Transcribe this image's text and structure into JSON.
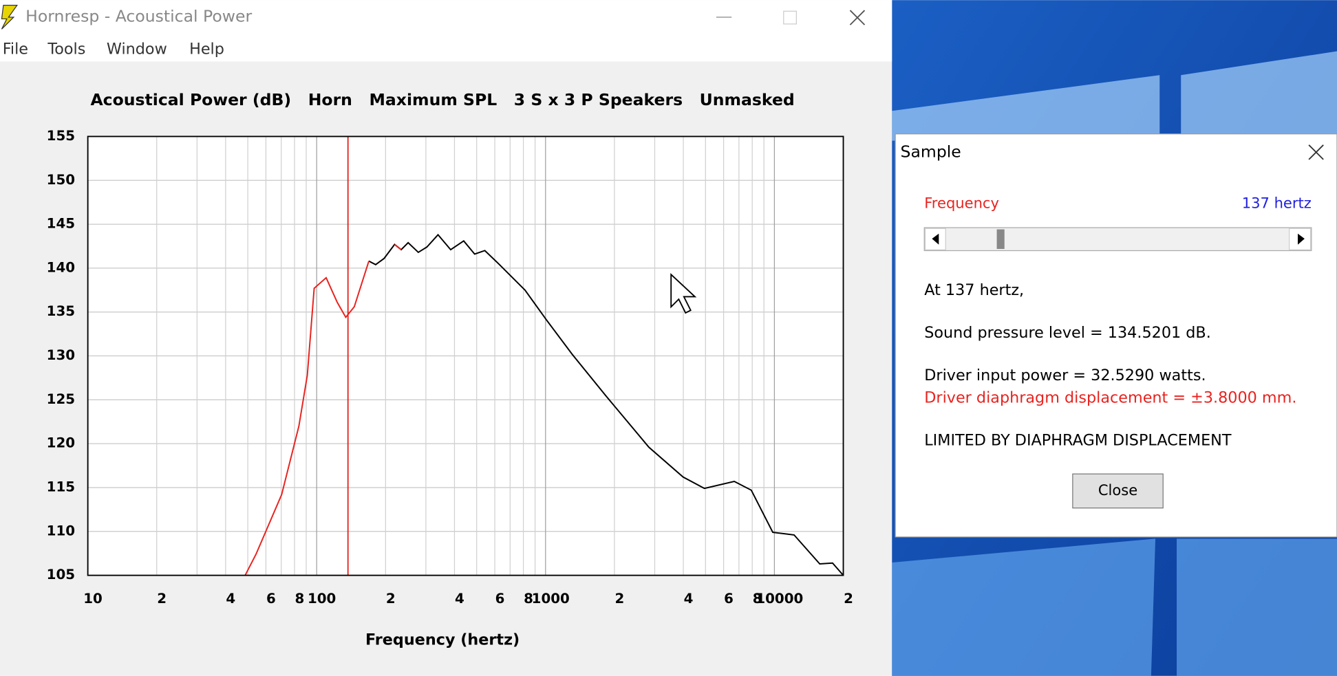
{
  "window": {
    "title": "Hornresp - Acoustical Power",
    "menu": [
      "File",
      "Tools",
      "Window",
      "Help"
    ]
  },
  "chart_data": {
    "type": "line",
    "title": "Acoustical Power (dB)   Horn   Maximum SPL   3 S x 3 P Speakers   Unmasked",
    "xlabel": "Frequency (hertz)",
    "xscale": "log",
    "xlim": [
      10,
      20000
    ],
    "ylim": [
      105,
      155
    ],
    "grid": true,
    "xticks": [
      10,
      {
        "value": 20,
        "label": "2"
      },
      {
        "value": 30,
        "label": null
      },
      {
        "value": 40,
        "label": "4"
      },
      {
        "value": 50,
        "label": null
      },
      {
        "value": 60,
        "label": "6"
      },
      {
        "value": 70,
        "label": null
      },
      {
        "value": 80,
        "label": "8"
      },
      {
        "value": 90,
        "label": null
      },
      100,
      {
        "value": 200,
        "label": "2"
      },
      {
        "value": 300,
        "label": null
      },
      {
        "value": 400,
        "label": "4"
      },
      {
        "value": 500,
        "label": null
      },
      {
        "value": 600,
        "label": "6"
      },
      {
        "value": 700,
        "label": null
      },
      {
        "value": 800,
        "label": "8"
      },
      {
        "value": 900,
        "label": null
      },
      1000,
      {
        "value": 2000,
        "label": "2"
      },
      {
        "value": 3000,
        "label": null
      },
      {
        "value": 4000,
        "label": "4"
      },
      {
        "value": 5000,
        "label": null
      },
      {
        "value": 6000,
        "label": "6"
      },
      {
        "value": 7000,
        "label": null
      },
      {
        "value": 8000,
        "label": "8"
      },
      {
        "value": 9000,
        "label": null
      },
      10000,
      {
        "value": 20000,
        "label": "2"
      }
    ],
    "yticks": [
      105,
      110,
      115,
      120,
      125,
      130,
      135,
      140,
      145,
      150,
      155
    ],
    "cursor_x": 137,
    "cursor_color": "#e8231f",
    "x": [
      48.7,
      54.3,
      70.3,
      83.6,
      91,
      97.5,
      110,
      123,
      134,
      146,
      169,
      181,
      197,
      219,
      234,
      251,
      278,
      303,
      339,
      385,
      439,
      490,
      543,
      629,
      813,
      1009,
      1306,
      1842,
      2827,
      3990,
      4945,
      6677,
      7925,
      9839,
      12190,
      15780,
      17950,
      20000
    ],
    "series": [
      {
        "color": "#000000",
        "values": [
          null,
          null,
          null,
          null,
          null,
          null,
          null,
          null,
          null,
          null,
          140.8,
          140.4,
          141.1,
          142.7,
          142.1,
          142.9,
          141.8,
          142.4,
          143.8,
          142.1,
          143.1,
          141.6,
          142.0,
          140.4,
          137.5,
          134.1,
          130.2,
          125.4,
          119.6,
          116.2,
          114.9,
          115.7,
          114.7,
          109.9,
          109.6,
          106.3,
          106.4,
          105.0
        ]
      },
      {
        "color": "#e8231f",
        "values": [
          105.0,
          107.4,
          114.2,
          122.0,
          127.8,
          137.7,
          138.9,
          136.1,
          134.4,
          135.6,
          140.8,
          null,
          null,
          142.7,
          142.1,
          null,
          null,
          null,
          null,
          null,
          null,
          null,
          null,
          null,
          null,
          null,
          null,
          null,
          null,
          null,
          null,
          null,
          null,
          null,
          null,
          null,
          null,
          null
        ]
      }
    ]
  },
  "dialog": {
    "title": "Sample",
    "label": "Frequency",
    "value": "137 hertz",
    "lines": [
      "At 137 hertz,",
      "Sound pressure level = 134.5201 dB.",
      "Driver input power = 32.5290 watts."
    ],
    "warning": "Driver diaphragm displacement = ±3.8000 mm.",
    "status": "LIMITED BY DIAPHRAGM DISPLACEMENT",
    "button": "Close"
  }
}
